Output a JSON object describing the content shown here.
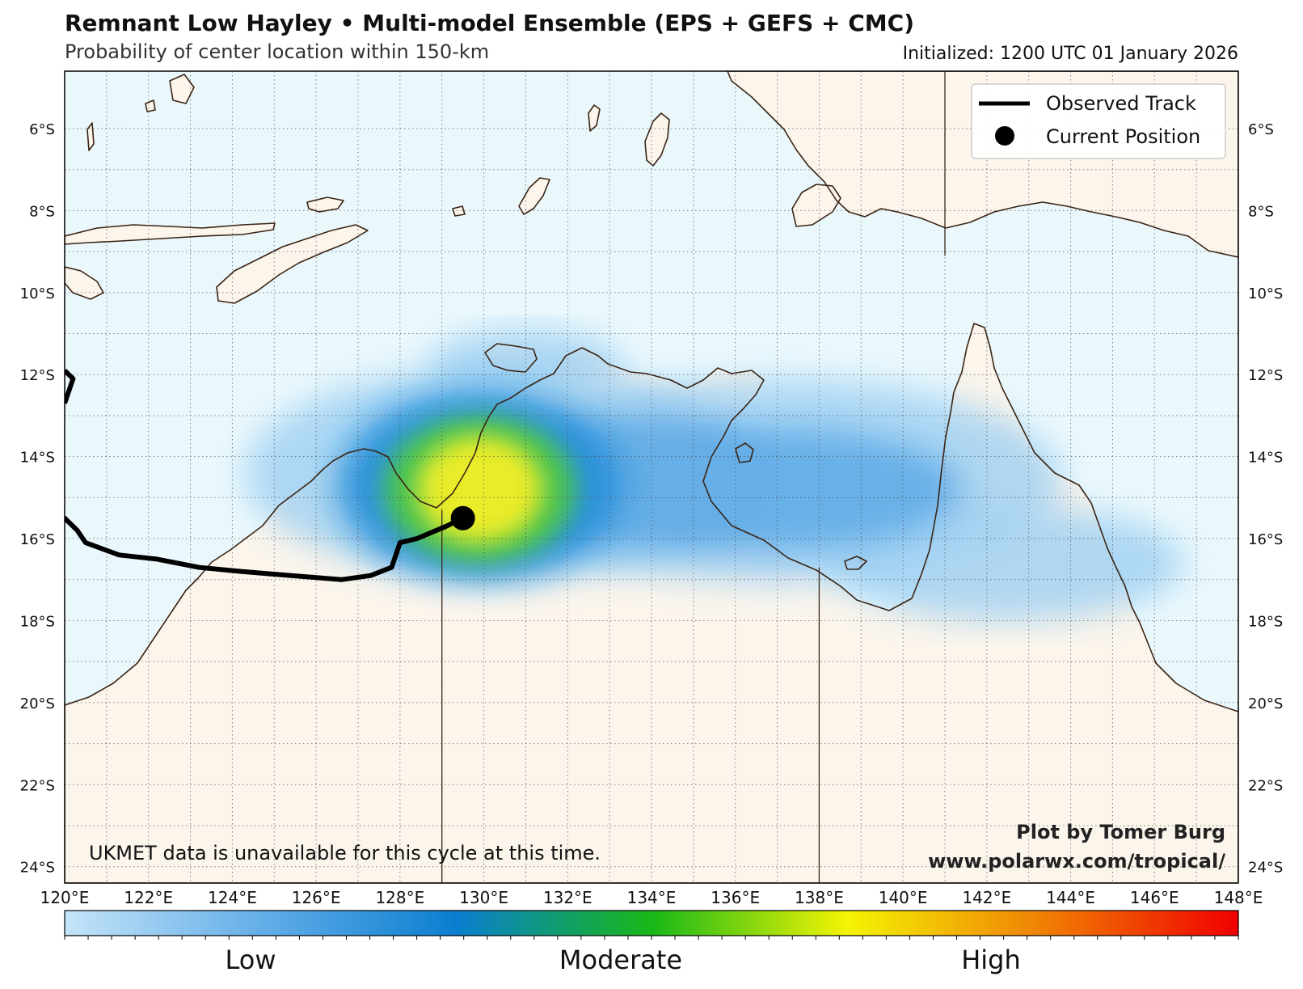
{
  "title": "Remnant Low Hayley • Multi-model Ensemble (EPS + GEFS + CMC)",
  "subtitle": "Probability of center location within 150-km",
  "initialized": "Initialized: 1200 UTC 01 January 2026",
  "legend": {
    "track_label": "Observed Track",
    "position_label": "Current Position"
  },
  "note": "UKMET data is unavailable for this cycle at this time.",
  "credit": {
    "line1": "Plot by Tomer Burg",
    "line2": "www.polarwx.com/tropical/"
  },
  "colorbar": {
    "low": "Low",
    "moderate": "Moderate",
    "high": "High",
    "colors": [
      "#c4e4f8",
      "#64aee8",
      "#0a7ed0",
      "#18b818",
      "#f4f404",
      "#f08004",
      "#f00000"
    ]
  },
  "map": {
    "lon_range": [
      120,
      148
    ],
    "lat_range": [
      -24.4,
      -4.6
    ],
    "lat_ticks": [
      "6°S",
      "8°S",
      "10°S",
      "12°S",
      "14°S",
      "16°S",
      "18°S",
      "20°S",
      "22°S",
      "24°S"
    ],
    "lon_ticks": [
      "120°E",
      "122°E",
      "124°E",
      "126°E",
      "128°E",
      "130°E",
      "132°E",
      "134°E",
      "136°E",
      "138°E",
      "140°E",
      "142°E",
      "144°E",
      "146°E",
      "148°E"
    ],
    "ocean_color": "#eaf8fc",
    "land_color": "#fbf5ec",
    "coast_color": "#3a2414",
    "observed_track": [
      [
        120.0,
        -15.5
      ],
      [
        120.3,
        -15.8
      ],
      [
        120.5,
        -16.1
      ],
      [
        121.3,
        -16.4
      ],
      [
        122.2,
        -16.5
      ],
      [
        123.2,
        -16.7
      ],
      [
        124.2,
        -16.8
      ],
      [
        125.4,
        -16.9
      ],
      [
        126.6,
        -17.0
      ],
      [
        127.3,
        -16.9
      ],
      [
        127.8,
        -16.7
      ],
      [
        128.0,
        -16.1
      ],
      [
        128.4,
        -16.0
      ],
      [
        129.1,
        -15.7
      ],
      [
        129.5,
        -15.5
      ]
    ],
    "track_north": [
      [
        120.0,
        -12.7
      ],
      [
        120.2,
        -12.1
      ],
      [
        120.0,
        -11.9
      ]
    ],
    "current_position": [
      129.5,
      -15.5
    ],
    "probability_blobs": [
      {
        "lon": 130.5,
        "lat": -14.4,
        "rx": 6.2,
        "ry": 2.6,
        "level": "low"
      },
      {
        "lon": 137.0,
        "lat": -14.6,
        "rx": 6.8,
        "ry": 2.5,
        "level": "low"
      },
      {
        "lon": 142.5,
        "lat": -16.6,
        "rx": 4.2,
        "ry": 1.4,
        "level": "low"
      },
      {
        "lon": 131.0,
        "lat": -11.8,
        "rx": 2.3,
        "ry": 0.9,
        "level": "low"
      },
      {
        "lon": 133.5,
        "lat": -14.6,
        "rx": 3.5,
        "ry": 1.6,
        "level": "low-mid"
      },
      {
        "lon": 137.0,
        "lat": -14.8,
        "rx": 4.4,
        "ry": 1.5,
        "level": "low-mid"
      },
      {
        "lon": 129.9,
        "lat": -14.7,
        "rx": 3.4,
        "ry": 2.3,
        "level": "blue"
      },
      {
        "lon": 129.9,
        "lat": -14.8,
        "rx": 2.3,
        "ry": 1.8,
        "level": "green"
      },
      {
        "lon": 129.9,
        "lat": -14.8,
        "rx": 1.5,
        "ry": 1.3,
        "level": "yellow"
      }
    ]
  }
}
